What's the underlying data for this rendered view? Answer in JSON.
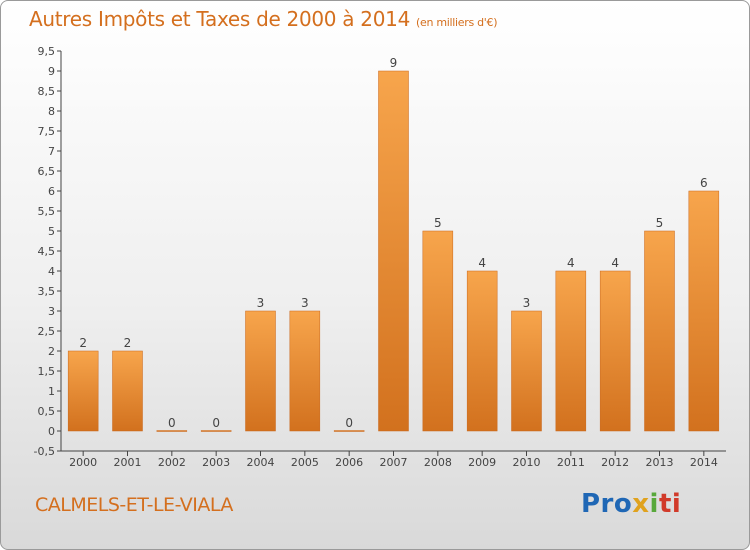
{
  "header": {
    "title": "Autres Impôts et Taxes de 2000 à 2014",
    "unit": "(en milliers d'€)"
  },
  "footer": {
    "commune": "CALMELS-ET-LE-VIALA",
    "logo_parts": [
      "Pro",
      "x",
      "i",
      "ti"
    ]
  },
  "colors": {
    "bar_light": "#f7a54c",
    "bar_dark": "#d2711e",
    "title": "#d46f1e",
    "axis": "#444444",
    "grid": "#cccccc"
  },
  "chart_data": {
    "type": "bar",
    "title": "Autres Impôts et Taxes de 2000 à 2014",
    "subtitle": "(en milliers d'€)",
    "xlabel": "",
    "ylabel": "",
    "categories": [
      "2000",
      "2001",
      "2002",
      "2003",
      "2004",
      "2005",
      "2006",
      "2007",
      "2008",
      "2009",
      "2010",
      "2011",
      "2012",
      "2013",
      "2014"
    ],
    "values": [
      2,
      2,
      0,
      0,
      3,
      3,
      0,
      9,
      5,
      4,
      3,
      4,
      4,
      5,
      6
    ],
    "data_labels": [
      "2",
      "2",
      "0",
      "0",
      "3",
      "3",
      "0",
      "9",
      "5",
      "4",
      "3",
      "4",
      "4",
      "5",
      "6"
    ],
    "y_ticks": [
      "-0,5",
      "0",
      "0,5",
      "1",
      "1,5",
      "2",
      "2,5",
      "3",
      "3,5",
      "4",
      "4,5",
      "5",
      "5,5",
      "6",
      "6,5",
      "7",
      "7,5",
      "8",
      "8,5",
      "9",
      "9,5"
    ],
    "ylim": [
      -0.5,
      9.5
    ],
    "grid": false,
    "legend": "none"
  }
}
